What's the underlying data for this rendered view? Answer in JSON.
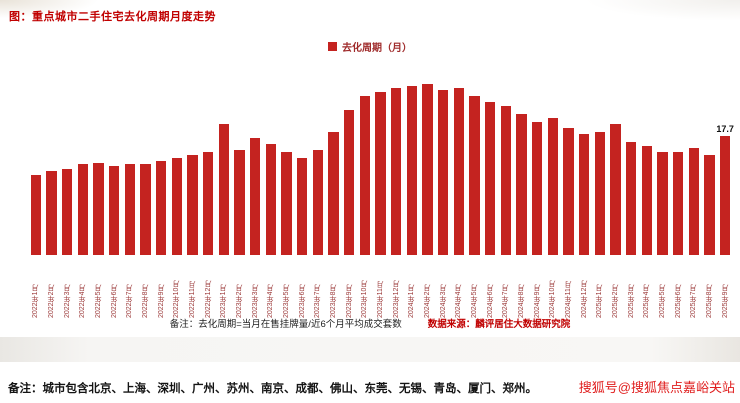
{
  "page": {
    "title": "图：重点城市二手住宅去化周期月度走势",
    "legend": "去化周期（月）",
    "note_formula": "备注：去化周期=当月在售挂牌量/近6个月平均成交套数",
    "source": "数据来源：麟评居住大数据研究院",
    "footer_note": "备注：城市包含北京、上海、深圳、广州、苏州、南京、成都、佛山、东莞、无锡、青岛、厦门、郑州。",
    "watermark": "搜狐号@搜狐焦点嘉峪关站"
  },
  "colors": {
    "bar": "#c42320",
    "title_red": "#c00000",
    "axis_label_red": "#9d3c3c",
    "watermark_red": "#e01f1f"
  },
  "chart_data": {
    "type": "bar",
    "title": "图：重点城市二手住宅去化周期月度走势",
    "legend": [
      "去化周期（月）"
    ],
    "legend_position": "top-center",
    "grid": false,
    "ylabel": "去化周期（月）",
    "ylim": [
      0,
      26
    ],
    "categories": [
      "2022年1月",
      "2022年2月",
      "2022年3月",
      "2022年4月",
      "2022年5月",
      "2022年6月",
      "2022年7月",
      "2022年8月",
      "2022年9月",
      "2022年10月",
      "2022年11月",
      "2022年12月",
      "2023年1月",
      "2023年2月",
      "2023年3月",
      "2023年4月",
      "2023年5月",
      "2023年6月",
      "2023年7月",
      "2023年8月",
      "2023年9月",
      "2023年10月",
      "2023年11月",
      "2023年12月",
      "2024年1月",
      "2024年2月",
      "2024年3月",
      "2024年4月",
      "2024年5月",
      "2024年6月",
      "2024年7月",
      "2024年8月",
      "2024年9月",
      "2024年10月",
      "2024年11月",
      "2024年12月",
      "2025年1月",
      "2025年2月",
      "2025年3月",
      "2025年4月",
      "2025年5月",
      "2025年6月",
      "2025年7月",
      "2025年8月",
      "2025年9月"
    ],
    "values": [
      12.0,
      12.6,
      12.9,
      13.6,
      13.8,
      13.3,
      13.6,
      13.6,
      14.1,
      14.5,
      15.0,
      15.4,
      19.5,
      15.7,
      17.5,
      16.5,
      15.4,
      14.5,
      15.7,
      18.4,
      21.7,
      23.7,
      24.4,
      25.0,
      25.2,
      25.5,
      24.7,
      25.0,
      23.7,
      22.8,
      22.2,
      21.0,
      19.9,
      20.5,
      19.0,
      18.0,
      18.4,
      19.5,
      16.8,
      16.2,
      15.4,
      15.4,
      16.0,
      15.0,
      17.7
    ],
    "data_labels": [
      {
        "index": 44,
        "text": "17.7"
      }
    ]
  }
}
